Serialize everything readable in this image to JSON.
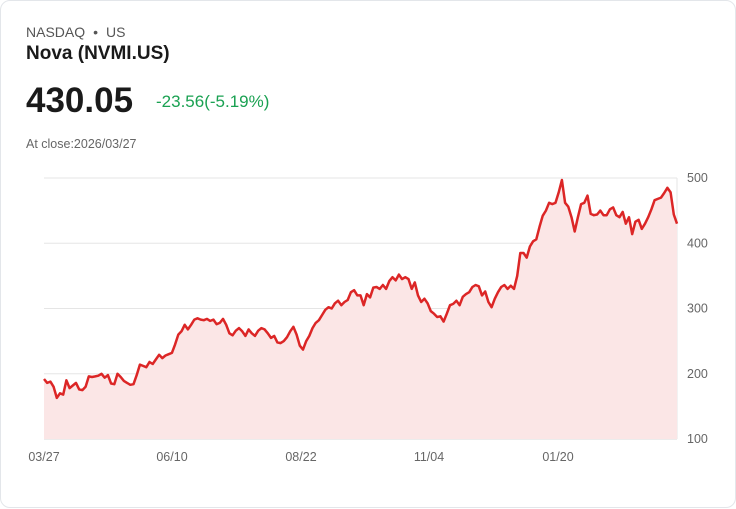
{
  "header": {
    "exchange": "NASDAQ",
    "separator": "•",
    "market": "US",
    "name": "Nova (NVMI.US)",
    "price": "430.05",
    "change": "-23.56(-5.19%)",
    "close_label": "At close:2026/03/27"
  },
  "colors": {
    "line": "#dc2626",
    "fill": "#fbe6e6",
    "change": "#1aa152",
    "grid": "#e5e5e5"
  },
  "chart_data": {
    "type": "area",
    "title": "Nova (NVMI.US)",
    "x_ticks": [
      "03/27",
      "06/10",
      "08/22",
      "11/04",
      "01/20"
    ],
    "y_ticks": [
      "500",
      "400",
      "300",
      "200",
      "100"
    ],
    "ylim": [
      100,
      500
    ],
    "grid": true,
    "y_axis_position": "right",
    "values": [
      192,
      186,
      188,
      180,
      163,
      170,
      168,
      190,
      178,
      182,
      186,
      176,
      175,
      180,
      196,
      195,
      196,
      197,
      200,
      194,
      198,
      185,
      184,
      200,
      195,
      189,
      186,
      183,
      184,
      198,
      214,
      212,
      210,
      218,
      215,
      222,
      229,
      224,
      228,
      230,
      232,
      245,
      260,
      265,
      275,
      268,
      275,
      283,
      285,
      283,
      282,
      284,
      281,
      283,
      276,
      278,
      284,
      275,
      262,
      259,
      266,
      270,
      265,
      258,
      268,
      262,
      258,
      266,
      270,
      268,
      262,
      255,
      258,
      248,
      247,
      250,
      256,
      265,
      272,
      260,
      243,
      237,
      250,
      258,
      270,
      278,
      282,
      290,
      298,
      302,
      300,
      308,
      312,
      305,
      310,
      313,
      325,
      328,
      320,
      320,
      305,
      322,
      317,
      332,
      333,
      330,
      336,
      330,
      342,
      348,
      343,
      352,
      345,
      348,
      345,
      330,
      340,
      320,
      310,
      315,
      308,
      296,
      292,
      287,
      288,
      280,
      292,
      305,
      307,
      312,
      305,
      318,
      322,
      325,
      333,
      336,
      334,
      320,
      326,
      310,
      302,
      315,
      325,
      333,
      336,
      330,
      335,
      330,
      350,
      385,
      385,
      378,
      395,
      403,
      406,
      425,
      442,
      450,
      462,
      460,
      462,
      478,
      497,
      462,
      456,
      440,
      418,
      440,
      460,
      462,
      473,
      445,
      443,
      444,
      450,
      443,
      443,
      452,
      455,
      443,
      440,
      448,
      430,
      440,
      414,
      433,
      436,
      422,
      430,
      440,
      452,
      466,
      468,
      470,
      477,
      485,
      478,
      444,
      430
    ]
  }
}
